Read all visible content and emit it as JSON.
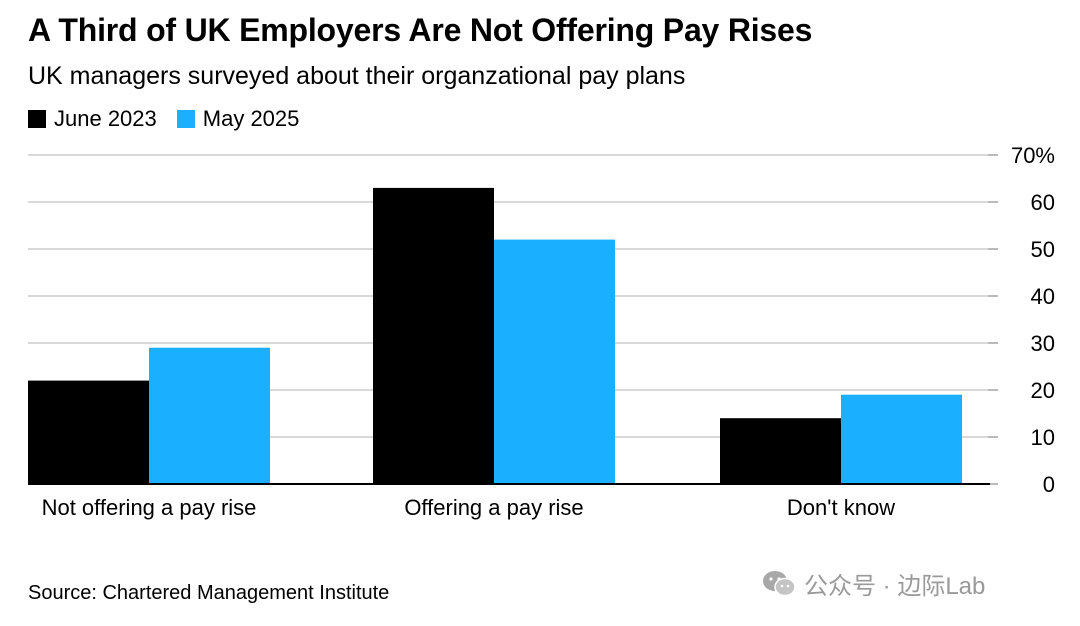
{
  "chart_data": {
    "type": "bar",
    "title": "A Third of UK Employers Are Not Offering Pay Rises",
    "subtitle": "UK managers surveyed about their organzational pay plans",
    "categories": [
      "Not offering a pay rise",
      "Offering a pay rise",
      "Don't know"
    ],
    "series": [
      {
        "name": "June 2023",
        "color": "#000000",
        "values": [
          22,
          63,
          14
        ]
      },
      {
        "name": "May 2025",
        "color": "#1aafff",
        "values": [
          29,
          52,
          19
        ]
      }
    ],
    "ylim": [
      0,
      70
    ],
    "yticks": [
      0,
      10,
      20,
      30,
      40,
      50,
      60,
      70
    ],
    "ytick_labels": [
      "0",
      "10",
      "20",
      "30",
      "40",
      "50",
      "60",
      "70%"
    ],
    "y_axis_side": "right",
    "grid": true,
    "legend": "top-left",
    "source": "Source: Chartered Management Institute"
  },
  "watermark": {
    "text": "公众号 · 边际Lab",
    "icon": "wechat-icon"
  }
}
